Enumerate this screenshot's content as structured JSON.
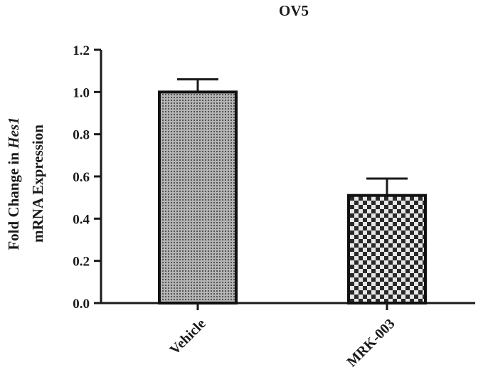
{
  "chart_data": {
    "type": "bar",
    "title": "OV5",
    "ylabel_line1_prefix": "Fold Change in ",
    "ylabel_line1_italic": "Hes1",
    "ylabel_line2": "mRNA Expression",
    "xlabel": "",
    "categories": [
      "Vehicle",
      "MRK-003"
    ],
    "values": [
      1.0,
      0.51
    ],
    "errors": [
      0.06,
      0.08
    ],
    "ylim": [
      0,
      1.2
    ],
    "yticks": [
      "0.0",
      "0.2",
      "0.4",
      "0.6",
      "0.8",
      "1.0",
      "1.2"
    ],
    "grid": false,
    "legend": "none",
    "colors": {
      "axis": "#1a1a1a",
      "bar_fill": "#9a9a9a",
      "bar_stroke": "#111111",
      "checker_dark": "#2a2a2a",
      "checker_light": "#e6e6e6"
    }
  }
}
